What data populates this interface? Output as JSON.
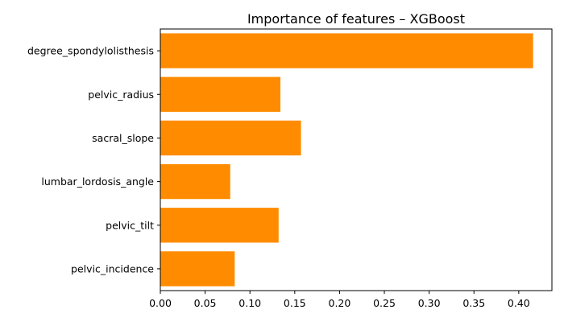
{
  "chart_data": {
    "type": "bar",
    "orientation": "horizontal",
    "title": "Importance of features – XGBoost",
    "xlabel": "",
    "ylabel": "",
    "categories": [
      "degree_spondylolisthesis",
      "pelvic_radius",
      "sacral_slope",
      "lumbar_lordosis_angle",
      "pelvic_tilt",
      "pelvic_incidence"
    ],
    "values": [
      0.416,
      0.134,
      0.157,
      0.078,
      0.132,
      0.083
    ],
    "xlim": [
      0,
      0.437
    ],
    "xticks": [
      0.0,
      0.05,
      0.1,
      0.15,
      0.2,
      0.25,
      0.3,
      0.35,
      0.4
    ],
    "xtick_labels": [
      "0.00",
      "0.05",
      "0.10",
      "0.15",
      "0.20",
      "0.25",
      "0.30",
      "0.35",
      "0.40"
    ],
    "bar_color": "#ff8c00",
    "grid": false,
    "legend": "none"
  }
}
